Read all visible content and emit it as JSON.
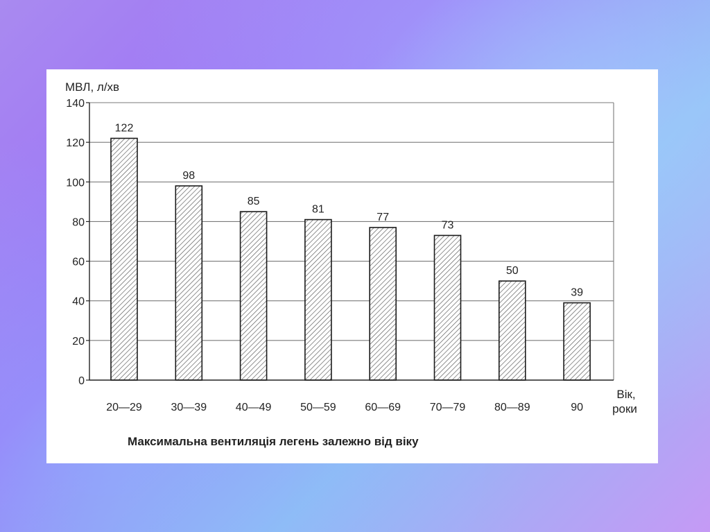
{
  "chart_data": {
    "type": "bar",
    "title": "Максимальна вентиляція легень залежно від віку",
    "ylabel": "МВЛ, л/хв",
    "xlabel": [
      "Вік,",
      "роки"
    ],
    "categories": [
      "20—29",
      "30—39",
      "40—49",
      "50—59",
      "60—69",
      "70—79",
      "80—89",
      "90"
    ],
    "values": [
      122,
      98,
      85,
      81,
      77,
      73,
      50,
      39
    ],
    "ylim": [
      0,
      140
    ],
    "yticks": [
      0,
      20,
      40,
      60,
      80,
      100,
      120,
      140
    ],
    "grid": true,
    "bar_fill": "hatched"
  },
  "colors": {
    "bar_stroke": "#1a1a1a",
    "hatch": "#555555",
    "grid": "#7a7a7a",
    "text": "#222222"
  }
}
